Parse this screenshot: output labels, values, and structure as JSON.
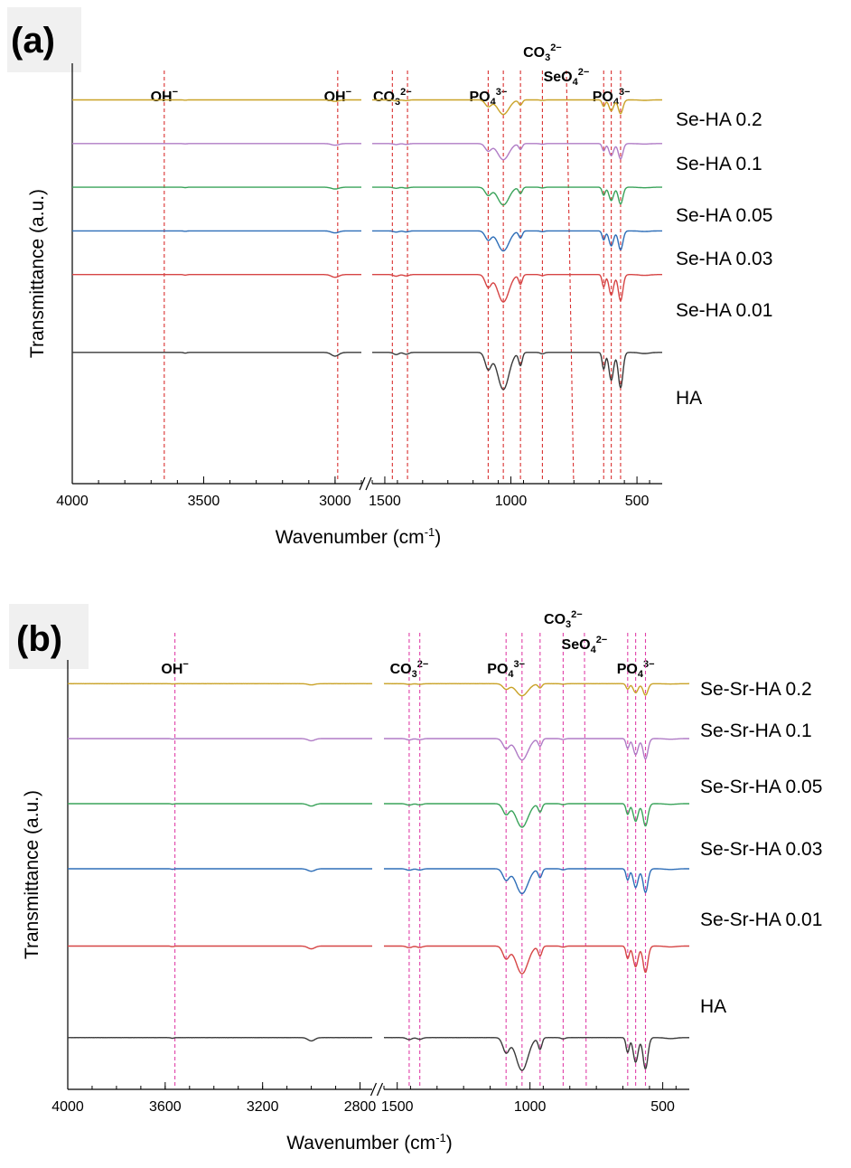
{
  "chart_data": [
    {
      "panel": "(a)",
      "type": "line",
      "xlabel": "Wavenumber (cm",
      "xlabel_sup": "-1",
      "xlabel_end": ")",
      "ylabel": "Transmittance (a.u.)",
      "x_reversed": true,
      "axis_break": [
        1550,
        2900
      ],
      "xlim_left": [
        4000,
        2900
      ],
      "xlim_right": [
        1550,
        400
      ],
      "xticks": [
        {
          "value": 4000,
          "label": "4000"
        },
        {
          "value": 3500,
          "label": "3500"
        },
        {
          "value": 3000,
          "label": "3000"
        },
        {
          "value": 1500,
          "label": "1500"
        },
        {
          "value": 1000,
          "label": "1000"
        },
        {
          "value": 500,
          "label": "500"
        }
      ],
      "series": [
        {
          "name": "Se-HA 0.2",
          "color": "#c9a227",
          "baseline": 0.975,
          "scale": 0.45
        },
        {
          "name": "Se-HA 0.1",
          "color": "#b07cc6",
          "baseline": 0.86,
          "scale": 0.5
        },
        {
          "name": "Se-HA 0.05",
          "color": "#3aa35a",
          "baseline": 0.745,
          "scale": 0.55
        },
        {
          "name": "Se-HA 0.03",
          "color": "#2e6eb8",
          "baseline": 0.63,
          "scale": 0.62
        },
        {
          "name": "Se-HA 0.01",
          "color": "#d64545",
          "baseline": 0.515,
          "scale": 0.85
        },
        {
          "name": "HA",
          "color": "#3a3a3a",
          "baseline": 0.31,
          "scale": 1.15
        }
      ],
      "reference_lines": [
        {
          "x": 3650,
          "label_main": "OH",
          "label_sup": "−",
          "label_sub": "",
          "label_sup2": ""
        },
        {
          "x": 2990,
          "label_main": "OH",
          "label_sup": "−",
          "label_sub": "",
          "label_sup2": ""
        },
        {
          "x": 1470,
          "label_main": "CO",
          "label_sub": "3",
          "label_sup": "2−",
          "label_sup2": ""
        },
        {
          "x": 1410,
          "label_main": "",
          "label_sub": "",
          "label_sup": "",
          "label_sup2": ""
        },
        {
          "x": 1090,
          "label_main": "PO",
          "label_sub": "4",
          "label_sup": "3−",
          "label_sup2": ""
        },
        {
          "x": 1030,
          "label_main": "",
          "label_sub": "",
          "label_sup": "",
          "label_sup2": ""
        },
        {
          "x": 962,
          "label_main": "",
          "label_sub": "",
          "label_sup": "",
          "label_sup2": ""
        },
        {
          "x": 875,
          "label_main": "CO",
          "label_sub": "3",
          "label_sup": "2−",
          "label_sup2": ""
        },
        {
          "x": 780,
          "label_main": "SeO",
          "label_sub": "4",
          "label_sup": "2−",
          "label_sup2": ""
        },
        {
          "x": 632,
          "label_main": "",
          "label_sub": "",
          "label_sup": "",
          "label_sup2": ""
        },
        {
          "x": 602,
          "label_main": "PO",
          "label_sub": "4",
          "label_sup": "3−",
          "label_sup2": ""
        },
        {
          "x": 565,
          "label_main": "",
          "label_sub": "",
          "label_sup": "",
          "label_sup2": ""
        }
      ],
      "ref_color": "#d93030"
    },
    {
      "panel": "(b)",
      "type": "line",
      "xlabel": "Wavenumber (cm",
      "xlabel_sup": "-1",
      "xlabel_end": ")",
      "ylabel": "Transmittance (a.u.)",
      "x_reversed": true,
      "axis_break": [
        1550,
        2750
      ],
      "xlim_left": [
        4000,
        2750
      ],
      "xlim_right": [
        1550,
        400
      ],
      "xticks": [
        {
          "value": 4000,
          "label": "4000"
        },
        {
          "value": 3600,
          "label": "3600"
        },
        {
          "value": 3200,
          "label": "3200"
        },
        {
          "value": 2800,
          "label": "2800"
        },
        {
          "value": 1500,
          "label": "1500"
        },
        {
          "value": 1000,
          "label": "1000"
        },
        {
          "value": 500,
          "label": "500"
        }
      ],
      "series": [
        {
          "name": "Se-Sr-HA 0.2",
          "color": "#c9a227",
          "baseline": 0.975,
          "scale": 0.35
        },
        {
          "name": "Se-Sr-HA 0.1",
          "color": "#b07cc6",
          "baseline": 0.84,
          "scale": 0.62
        },
        {
          "name": "Se-Sr-HA 0.05",
          "color": "#3aa35a",
          "baseline": 0.68,
          "scale": 0.68
        },
        {
          "name": "Se-Sr-HA 0.03",
          "color": "#2e6eb8",
          "baseline": 0.52,
          "scale": 0.72
        },
        {
          "name": "Se-Sr-HA 0.01",
          "color": "#d64545",
          "baseline": 0.33,
          "scale": 0.8
        },
        {
          "name": "HA",
          "color": "#3a3a3a",
          "baseline": 0.105,
          "scale": 0.95
        }
      ],
      "reference_lines": [
        {
          "x": 3560,
          "label_main": "OH",
          "label_sup": "−",
          "label_sub": "",
          "label_sup2": ""
        },
        {
          "x": 1455,
          "label_main": "CO",
          "label_sub": "3",
          "label_sup": "2−",
          "label_sup2": ""
        },
        {
          "x": 1415,
          "label_main": "",
          "label_sub": "",
          "label_sup": "",
          "label_sup2": ""
        },
        {
          "x": 1090,
          "label_main": "PO",
          "label_sub": "4",
          "label_sup": "3−",
          "label_sup2": ""
        },
        {
          "x": 1030,
          "label_main": "",
          "label_sub": "",
          "label_sup": "",
          "label_sup2": ""
        },
        {
          "x": 962,
          "label_main": "",
          "label_sub": "",
          "label_sup": "",
          "label_sup2": ""
        },
        {
          "x": 875,
          "label_main": "CO",
          "label_sub": "3",
          "label_sup": "2−",
          "label_sup2": ""
        },
        {
          "x": 795,
          "label_main": "SeO",
          "label_sub": "4",
          "label_sup": "2−",
          "label_sup2": ""
        },
        {
          "x": 632,
          "label_main": "",
          "label_sub": "",
          "label_sup": "",
          "label_sup2": ""
        },
        {
          "x": 602,
          "label_main": "PO",
          "label_sub": "4",
          "label_sup": "3−",
          "label_sup2": ""
        },
        {
          "x": 565,
          "label_main": "",
          "label_sub": "",
          "label_sup": "",
          "label_sup2": ""
        }
      ],
      "ref_color": "#e040a8"
    }
  ]
}
